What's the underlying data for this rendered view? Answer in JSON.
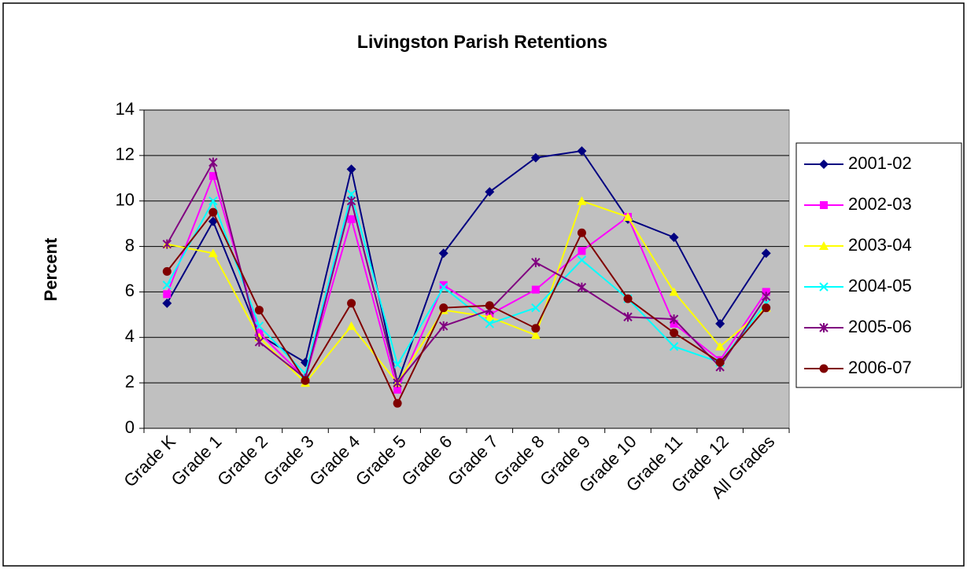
{
  "chart_data": {
    "type": "line",
    "title": "Livingston Parish Retentions",
    "y_label": "Percent",
    "categories": [
      "Grade K",
      "Grade 1",
      "Grade 2",
      "Grade 3",
      "Grade 4",
      "Grade 5",
      "Grade 6",
      "Grade 7",
      "Grade 8",
      "Grade 9",
      "Grade 10",
      "Grade 11",
      "Grade 12",
      "All Grades"
    ],
    "series": [
      {
        "name": "2001-02",
        "color": "#000080",
        "marker": "diamond",
        "values": [
          5.5,
          9.1,
          4.1,
          2.9,
          11.4,
          2.0,
          7.7,
          10.4,
          11.9,
          12.2,
          9.2,
          8.4,
          4.6,
          7.7
        ]
      },
      {
        "name": "2002-03",
        "color": "#ff00ff",
        "marker": "square",
        "values": [
          5.9,
          11.1,
          4.2,
          2.2,
          9.2,
          1.7,
          6.3,
          5.0,
          6.1,
          7.8,
          9.3,
          4.6,
          3.0,
          6.0
        ]
      },
      {
        "name": "2003-04",
        "color": "#ffff00",
        "marker": "triangle",
        "values": [
          8.1,
          7.7,
          4.0,
          2.0,
          4.5,
          2.0,
          5.2,
          4.9,
          4.1,
          10.0,
          9.3,
          6.0,
          3.6,
          5.3
        ]
      },
      {
        "name": "2004-05",
        "color": "#00ffff",
        "marker": "x",
        "values": [
          6.3,
          10.0,
          4.5,
          2.4,
          10.3,
          2.8,
          6.2,
          4.6,
          5.3,
          7.4,
          5.7,
          3.6,
          2.9,
          5.5
        ]
      },
      {
        "name": "2005-06",
        "color": "#800080",
        "marker": "star",
        "values": [
          8.1,
          11.7,
          3.8,
          2.2,
          10.0,
          2.0,
          4.5,
          5.2,
          7.3,
          6.2,
          4.9,
          4.8,
          2.7,
          5.8
        ]
      },
      {
        "name": "2006-07",
        "color": "#800000",
        "marker": "circle",
        "values": [
          6.9,
          9.5,
          5.2,
          2.1,
          5.5,
          1.1,
          5.3,
          5.4,
          4.4,
          8.6,
          5.7,
          4.2,
          2.9,
          5.3
        ]
      }
    ],
    "ylim": [
      0,
      14
    ],
    "yticks": [
      0,
      2,
      4,
      6,
      8,
      10,
      12,
      14
    ],
    "grid": true,
    "legend": "right"
  }
}
